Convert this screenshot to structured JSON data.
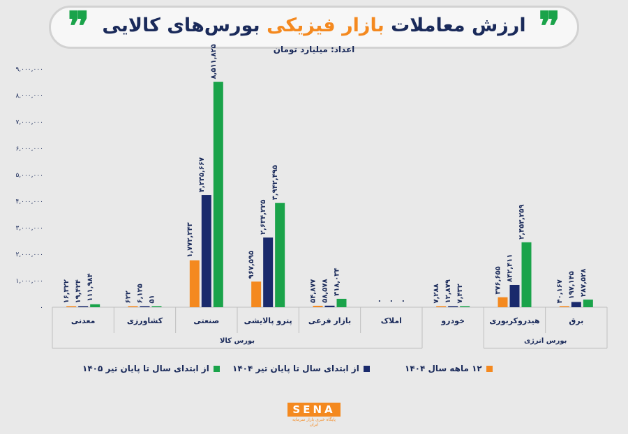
{
  "header": {
    "title_part1": "ارزش معاملات",
    "title_highlight": "بازار فیزیکی",
    "title_part2": "بورس‌های کالایی",
    "quote_mark": "❞",
    "unit": "اعداد: میلیارد تومان"
  },
  "colors": {
    "s1404": "#f4891f",
    "stir1404": "#1a2a6c",
    "stir1405": "#1aa34a"
  },
  "chart_data": {
    "type": "bar",
    "ylim": [
      0,
      9000000
    ],
    "yticks": [
      "۰",
      "۱,۰۰۰,۰۰۰",
      "۲,۰۰۰,۰۰۰",
      "۳,۰۰۰,۰۰۰",
      "۴,۰۰۰,۰۰۰",
      "۵,۰۰۰,۰۰۰",
      "۶,۰۰۰,۰۰۰",
      "۷,۰۰۰,۰۰۰",
      "۸,۰۰۰,۰۰۰",
      "۹,۰۰۰,۰۰۰"
    ],
    "grid": false,
    "legend_position": "bottom",
    "categories": [
      "معدنی",
      "کشاورزی",
      "صنعتی",
      "پترو پالایشی",
      "بازار فرعی",
      "املاک",
      "خودرو",
      "هیدروکربوری",
      "برق"
    ],
    "groups": [
      {
        "label": "بورس کالا",
        "categories": [
          0,
          1,
          2,
          3,
          4,
          5
        ]
      },
      {
        "label": "بورس انرژی",
        "categories": [
          7,
          8
        ]
      }
    ],
    "series": [
      {
        "name": "۱۲ ماهه سال ۱۴۰۴",
        "color_key": "s1404",
        "values": [
          16322,
          622,
          1772243,
          967595,
          54877,
          0,
          7288,
          376655,
          40167
        ],
        "labels": [
          "۱۶,۳۲۲",
          "۶۲۲",
          "۱,۷۷۲,۲۴۳",
          "۹۶۷,۵۹۵",
          "۵۴,۸۷۷",
          "۰",
          "۷,۲۸۸",
          "۳۷۶,۶۵۵",
          "۴۰,۱۶۷"
        ]
      },
      {
        "name": "از ابتدای سال تا پایان تیر ۱۴۰۴",
        "color_key": "stir1404",
        "values": [
          19424,
          6125,
          4235667,
          2634225,
          58578,
          0,
          12879,
          842411,
          197145
        ],
        "labels": [
          "۱۹,۴۲۴",
          "۶,۱۲۵",
          "۴,۲۳۵,۶۶۷",
          "۲,۶۳۴,۲۲۵",
          "۵۸,۵۷۸",
          "۰",
          "۱۲,۸۷۹",
          "۸۴۲,۴۱۱",
          "۱۹۷,۱۴۵"
        ]
      },
      {
        "name": "از ابتدای سال تا پایان تیر ۱۴۰۵",
        "color_key": "stir1405",
        "values": [
          111984,
          51,
          8511825,
          3942495,
          318034,
          0,
          7432,
          2453259,
          287528
        ],
        "labels": [
          "۱۱۱,۹۸۴",
          "۵۱",
          "۸,۵۱۱,۸۲۵",
          "۳,۹۴۲,۴۹۵",
          "۳۱۸,۰۳۴",
          "۰",
          "۷,۴۳۲",
          "۲,۴۵۳,۲۵۹",
          "۲۸۷,۵۲۸"
        ]
      }
    ]
  },
  "logo": {
    "text": "SENA",
    "subtitle": "پایگاه خبری بازار سرمایه ایران"
  }
}
